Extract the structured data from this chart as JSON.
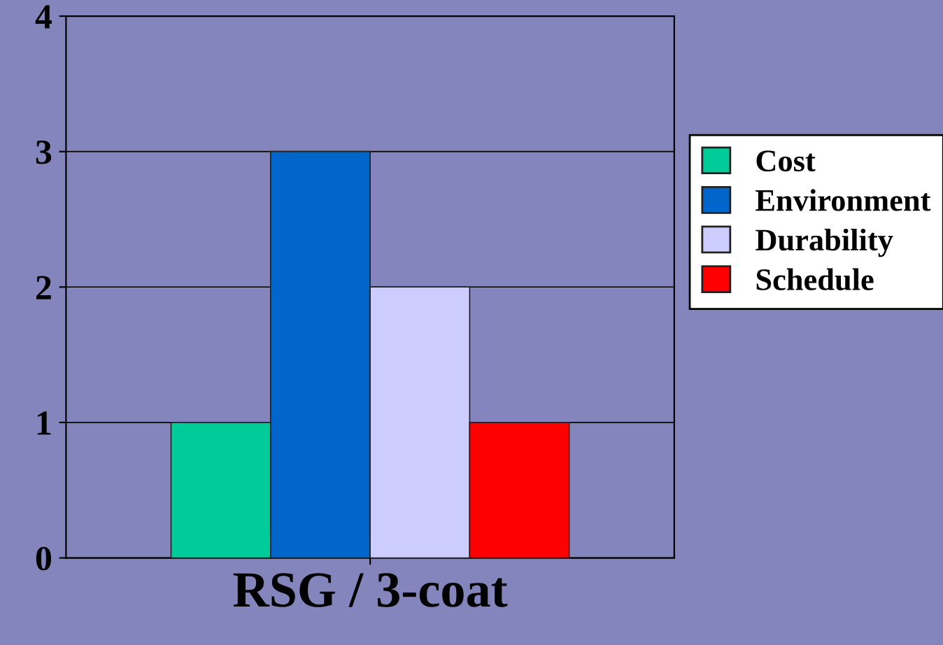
{
  "chart_data": {
    "type": "bar",
    "categories": [
      "RSG / 3-coat"
    ],
    "series": [
      {
        "name": "Cost",
        "color": "#00cc99",
        "values": [
          1
        ]
      },
      {
        "name": "Environment",
        "color": "#0066cc",
        "values": [
          3
        ]
      },
      {
        "name": "Durability",
        "color": "#ccccff",
        "values": [
          2
        ]
      },
      {
        "name": "Schedule",
        "color": "#ff0000",
        "values": [
          1
        ]
      }
    ],
    "ylim": [
      0,
      4
    ],
    "yticks": [
      0,
      1,
      2,
      3,
      4
    ],
    "grid": "y",
    "legend": "right"
  }
}
